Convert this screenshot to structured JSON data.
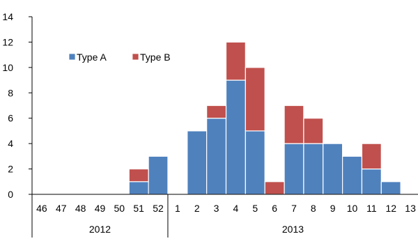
{
  "chart_data": {
    "type": "bar",
    "stacked": true,
    "title": "",
    "xlabel": "",
    "ylabel": "",
    "ylim": [
      0,
      14
    ],
    "yticks": [
      0,
      2,
      4,
      6,
      8,
      10,
      12,
      14
    ],
    "grid": false,
    "legend_position": "upper-left",
    "categories": [
      "46",
      "47",
      "48",
      "49",
      "50",
      "51",
      "52",
      "1",
      "2",
      "3",
      "4",
      "5",
      "6",
      "7",
      "8",
      "9",
      "10",
      "11",
      "12",
      "13"
    ],
    "year_groups": [
      {
        "label": "2012",
        "count": 7
      },
      {
        "label": "2013",
        "count": 13
      }
    ],
    "series": [
      {
        "name": "Type A",
        "color": "#4F81BD",
        "values": [
          0,
          0,
          0,
          0,
          0,
          1,
          3,
          0,
          5,
          6,
          9,
          5,
          0,
          4,
          4,
          4,
          3,
          2,
          1,
          0
        ]
      },
      {
        "name": "Type B",
        "color": "#C0504D",
        "values": [
          0,
          0,
          0,
          0,
          0,
          1,
          0,
          0,
          0,
          1,
          3,
          5,
          1,
          3,
          2,
          0,
          0,
          2,
          0,
          0
        ]
      }
    ]
  }
}
